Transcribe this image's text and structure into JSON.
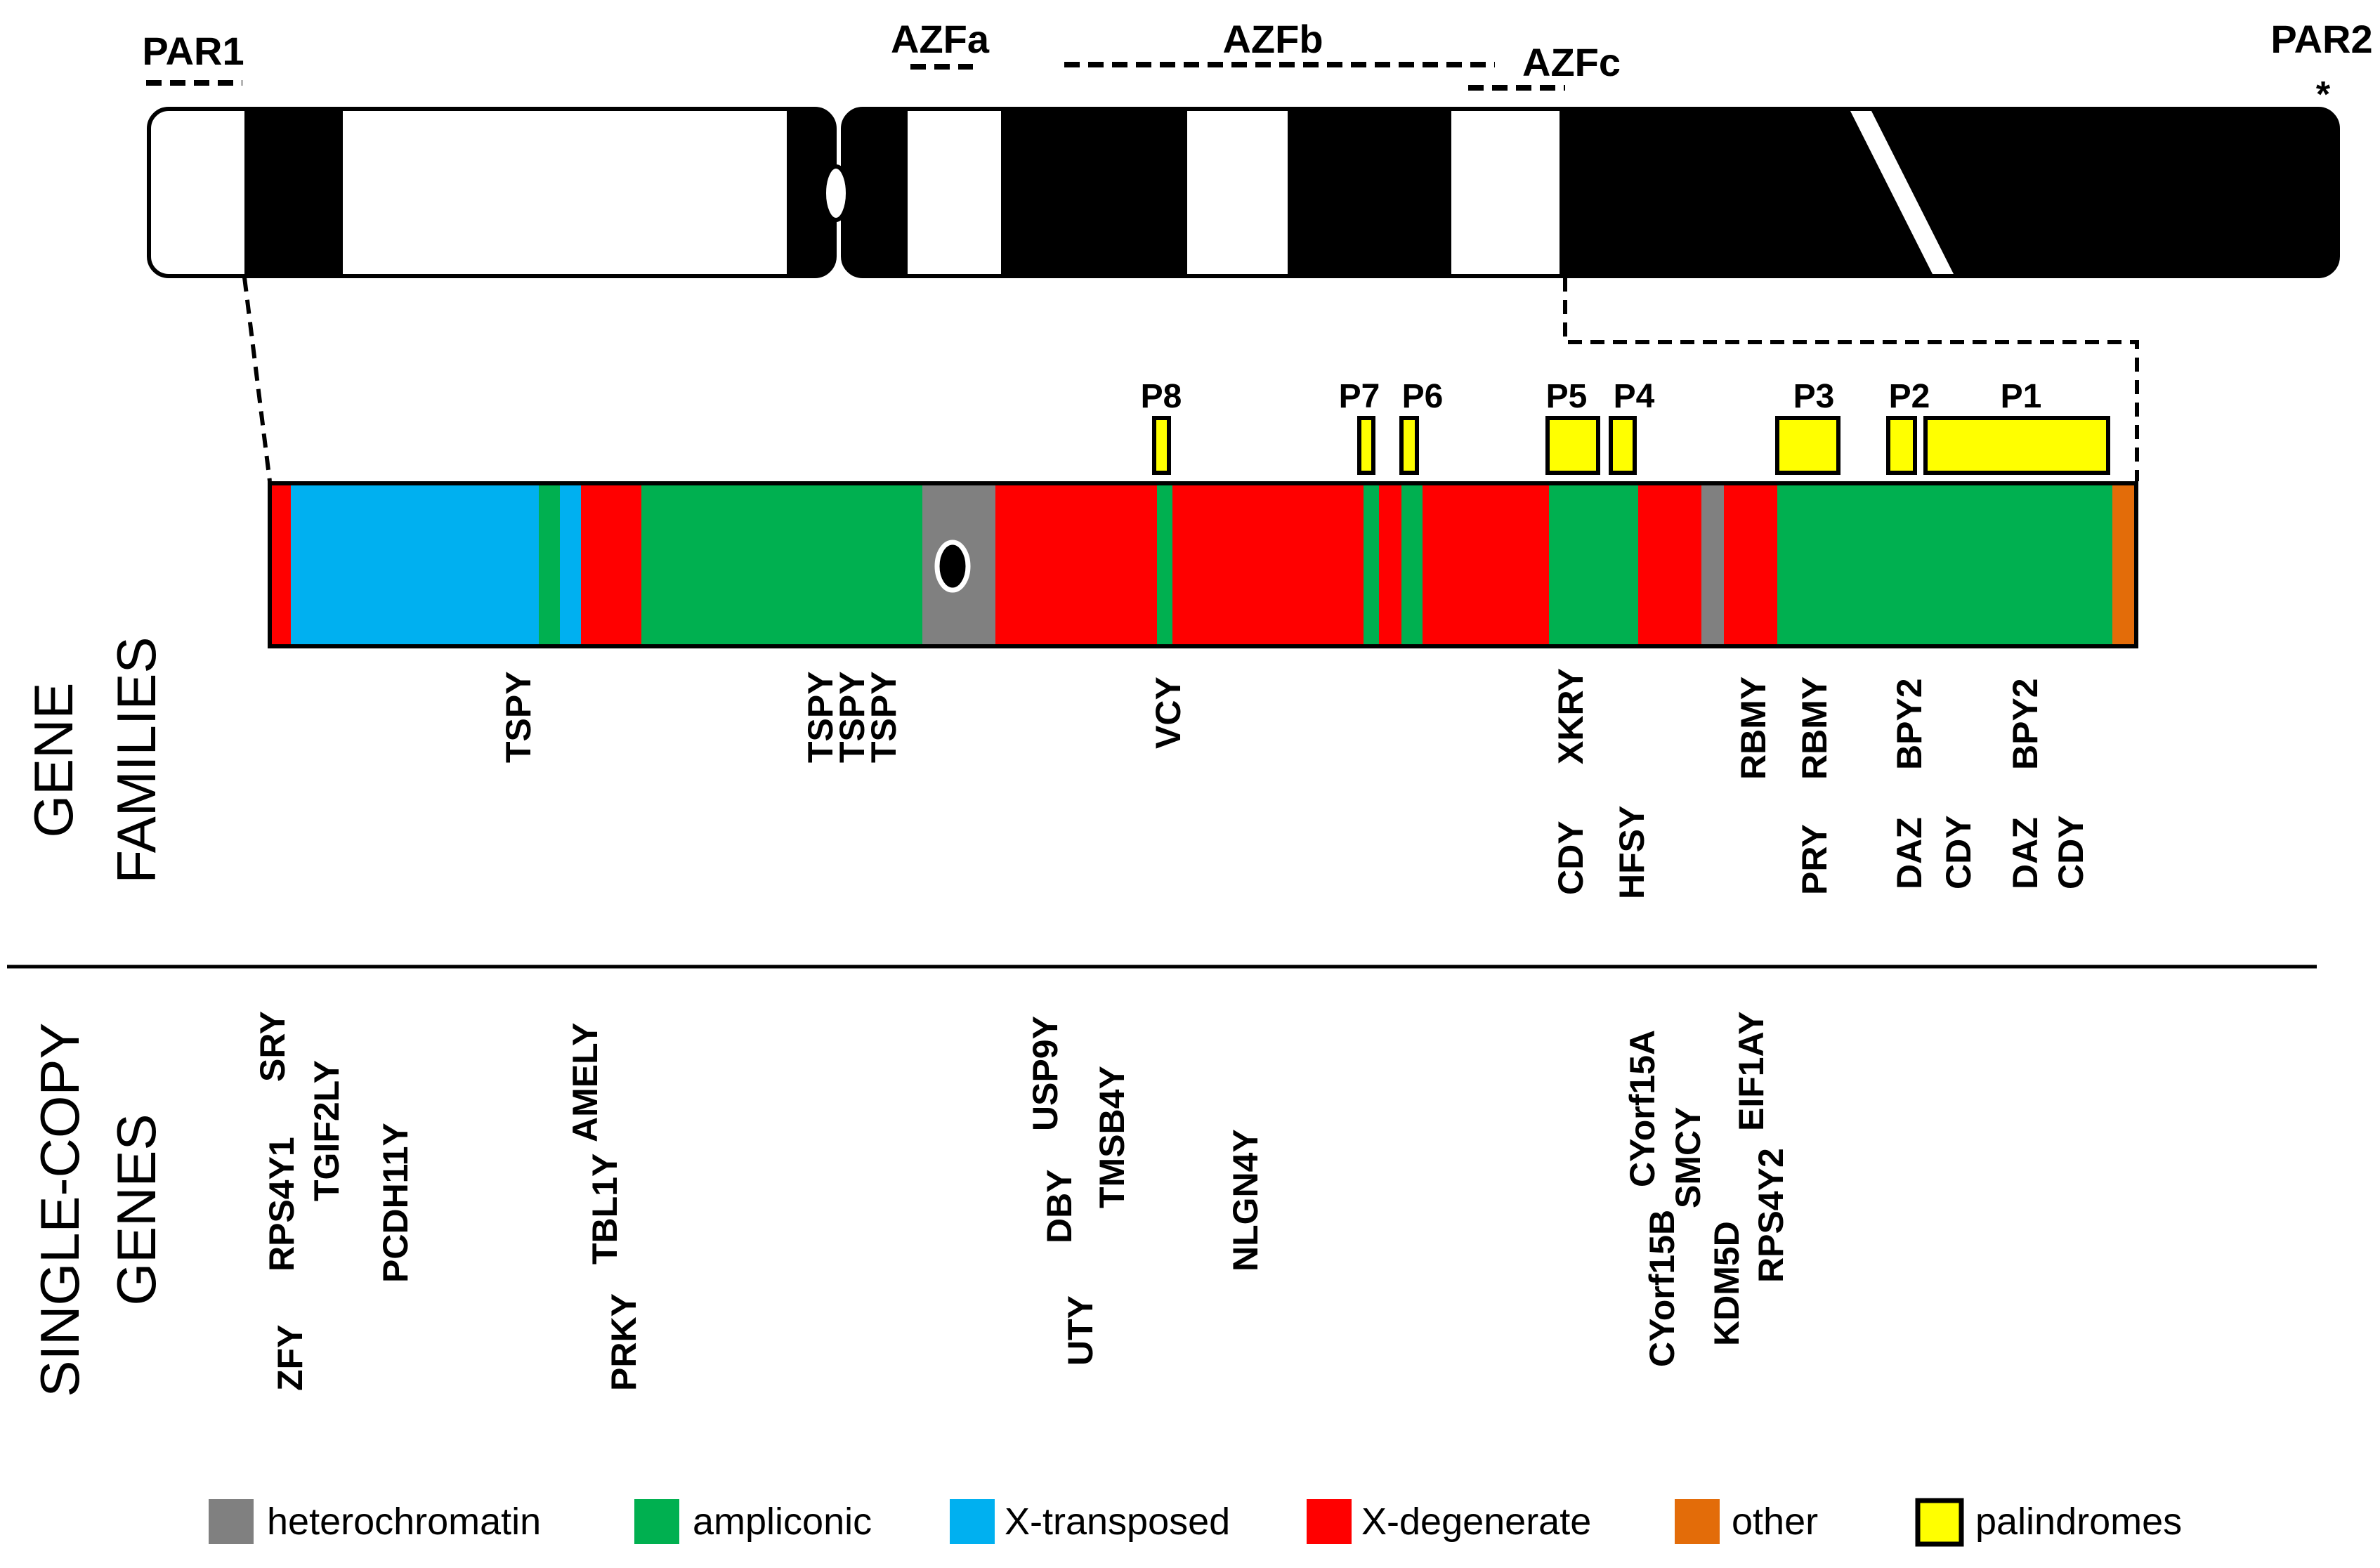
{
  "regions": {
    "par1": "PAR1",
    "par2": "PAR2",
    "par2_mark": "*",
    "azfa": "AZFa",
    "azfb": "AZFb",
    "azfc": "AZFc"
  },
  "palindromes": [
    "P8",
    "P7",
    "P6",
    "P5",
    "P4",
    "P3",
    "P2",
    "P1"
  ],
  "section_labels": {
    "gene_families_line1": "GENE",
    "gene_families_line2": "FAMILIES",
    "single_copy_line1": "SINGLE-COPY",
    "single_copy_line2": "GENES"
  },
  "gene_families": [
    "TSPY",
    "TSPY",
    "TSPY",
    "TSPY",
    "VCY",
    "XKRY",
    "CDY",
    "HFSY",
    "RBMY",
    "RBMY",
    "PRY",
    "BPY2",
    "DAZ",
    "CDY",
    "BPY2",
    "DAZ",
    "CDY"
  ],
  "single_copy_genes": [
    "SRY",
    "RPS4Y1",
    "TGIF2LY",
    "ZFY",
    "PCDH11Y",
    "AMELY",
    "TBL1Y",
    "PRKY",
    "USP9Y",
    "DBY",
    "TMSB4Y",
    "UTY",
    "NLGN4Y",
    "CYorf15A",
    "SMCY",
    "CYorf15B",
    "EIF1AY",
    "KDM5D",
    "RPS4Y2"
  ],
  "legend": [
    {
      "label": "heterochromatin",
      "color": "#808080"
    },
    {
      "label": "ampliconic",
      "color": "#00b050"
    },
    {
      "label": "X-transposed",
      "color": "#00b0f0"
    },
    {
      "label": "X-degenerate",
      "color": "#ff0000"
    },
    {
      "label": "other",
      "color": "#e36c09"
    },
    {
      "label": "palindromes",
      "color": "#ffff00"
    }
  ],
  "colors": {
    "heterochromatin": "#808080",
    "ampliconic": "#00b050",
    "x_transposed": "#00b0f0",
    "x_degenerate": "#ff0000",
    "other": "#e36c09",
    "palindrome": "#ffff00"
  }
}
